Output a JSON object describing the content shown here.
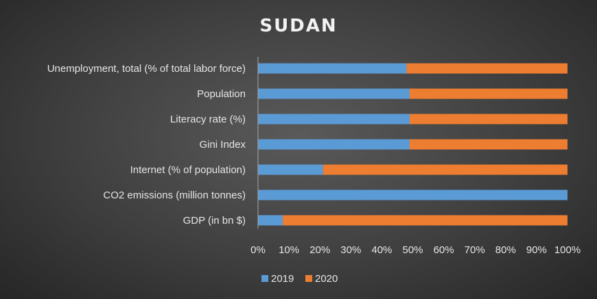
{
  "chart_data": {
    "type": "bar",
    "orientation": "horizontal",
    "stacked": "percent",
    "title": "SUDAN",
    "categories": [
      "Unemployment, total (% of total labor force)",
      "Population",
      "Literacy rate (%)",
      "Gini Index",
      "Internet (% of population)",
      "CO2 emissions (million tonnes)",
      "GDP (in bn $)"
    ],
    "series": [
      {
        "name": "2019",
        "color": "#5b9bd5",
        "values": [
          48,
          49,
          49,
          49,
          21,
          100,
          8
        ]
      },
      {
        "name": "2020",
        "color": "#ed7d31",
        "values": [
          52,
          51,
          51,
          51,
          79,
          0,
          92
        ]
      }
    ],
    "xlim": [
      0,
      100
    ],
    "x_ticks": [
      "0%",
      "10%",
      "20%",
      "30%",
      "40%",
      "50%",
      "60%",
      "70%",
      "80%",
      "90%",
      "100%"
    ],
    "legend_position": "bottom",
    "grid": false
  }
}
